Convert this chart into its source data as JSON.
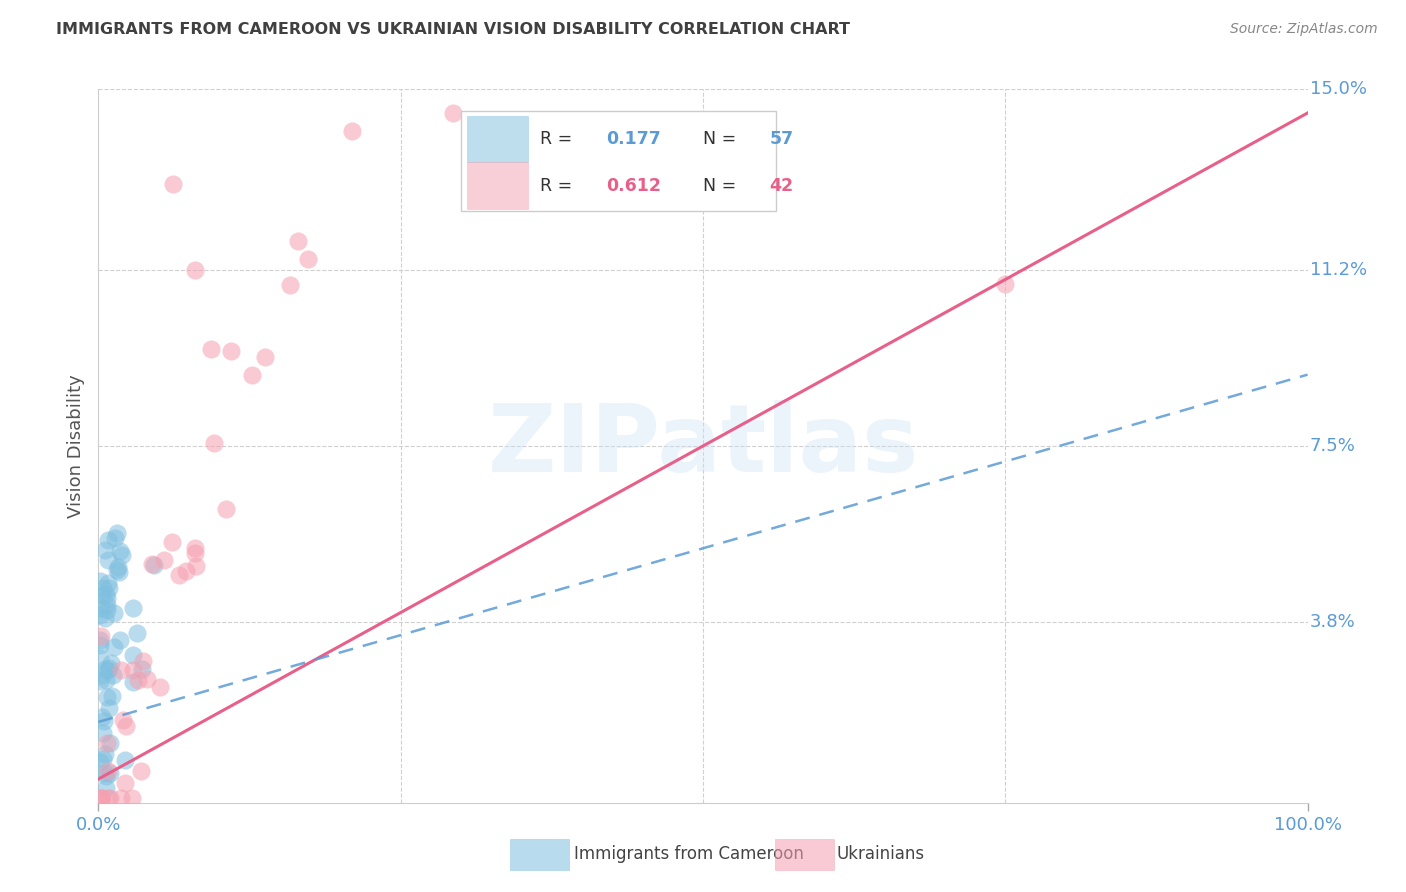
{
  "title": "IMMIGRANTS FROM CAMEROON VS UKRAINIAN VISION DISABILITY CORRELATION CHART",
  "source": "Source: ZipAtlas.com",
  "ylabel": "Vision Disability",
  "bg_color": "#ffffff",
  "watermark_text": "ZIPatlas",
  "legend_r1": "R = 0.177",
  "legend_n1": "N = 57",
  "legend_r2": "R = 0.612",
  "legend_n2": "N = 42",
  "blue_color": "#7fbfdf",
  "pink_color": "#f5a0b0",
  "blue_line_color": "#5b9bd5",
  "pink_line_color": "#e8608a",
  "grid_color": "#d0d0d0",
  "title_color": "#404040",
  "axis_tick_color": "#5b9bd5",
  "ylabel_color": "#555555",
  "source_color": "#888888",
  "ytick_vals": [
    0.038,
    0.075,
    0.112,
    0.15
  ],
  "ytick_labels": [
    "3.8%",
    "7.5%",
    "11.2%",
    "15.0%"
  ],
  "xlim": [
    0.0,
    1.0
  ],
  "ylim": [
    0.0,
    0.15
  ],
  "blue_trend_x": [
    0.0,
    1.0
  ],
  "blue_trend_y": [
    0.017,
    0.09
  ],
  "pink_trend_x": [
    0.0,
    1.0
  ],
  "pink_trend_y": [
    0.005,
    0.145
  ]
}
